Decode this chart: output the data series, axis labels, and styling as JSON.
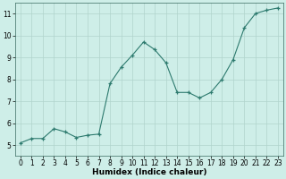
{
  "x": [
    0,
    1,
    2,
    3,
    4,
    5,
    6,
    7,
    8,
    9,
    10,
    11,
    12,
    13,
    14,
    15,
    16,
    17,
    18,
    19,
    20,
    21,
    22,
    23
  ],
  "y": [
    5.1,
    5.3,
    5.3,
    5.75,
    5.6,
    5.35,
    5.45,
    5.5,
    7.8,
    8.55,
    9.1,
    9.7,
    9.35,
    8.75,
    7.4,
    7.4,
    7.15,
    7.4,
    8.0,
    8.9,
    10.35,
    11.0,
    11.15,
    11.25
  ],
  "line_color": "#2d7a6e",
  "marker_color": "#2d7a6e",
  "bg_color": "#ceeee8",
  "grid_color": "#b0d4cc",
  "xlabel": "Humidex (Indice chaleur)",
  "ylabel": "",
  "xlim": [
    -0.5,
    23.5
  ],
  "ylim": [
    4.5,
    11.5
  ],
  "yticks": [
    5,
    6,
    7,
    8,
    9,
    10,
    11
  ],
  "xticks": [
    0,
    1,
    2,
    3,
    4,
    5,
    6,
    7,
    8,
    9,
    10,
    11,
    12,
    13,
    14,
    15,
    16,
    17,
    18,
    19,
    20,
    21,
    22,
    23
  ],
  "tick_fontsize": 5.5,
  "label_fontsize": 6.5
}
